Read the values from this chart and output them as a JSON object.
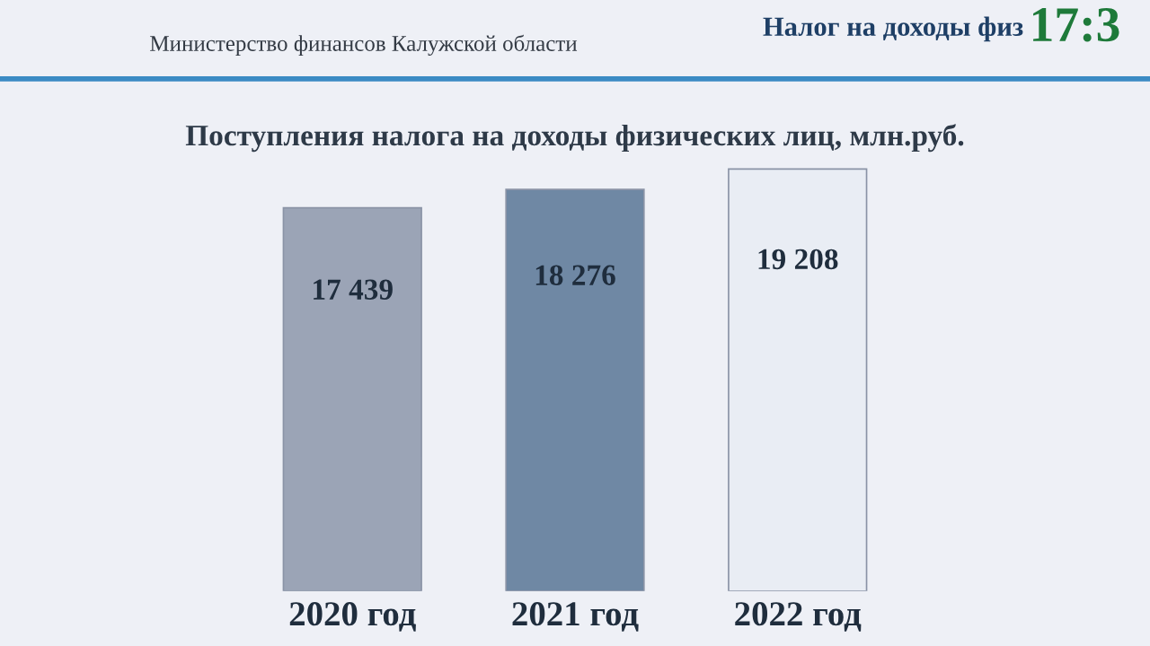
{
  "chart_data": {
    "type": "bar",
    "title": "Поступления налога на доходы физических лиц, млн.руб.",
    "categories": [
      "2020 год",
      "2021 год",
      "2022 год"
    ],
    "values": [
      17439,
      18276,
      19208
    ],
    "value_labels": [
      "17 439",
      "18 276",
      "19 208"
    ],
    "colors": [
      "#9ba4b6",
      "#6f88a4",
      "#e9edf4"
    ],
    "annotations": [
      "Министерство финансов Калужской области",
      "Налог на доходы физ",
      "17:3"
    ]
  }
}
